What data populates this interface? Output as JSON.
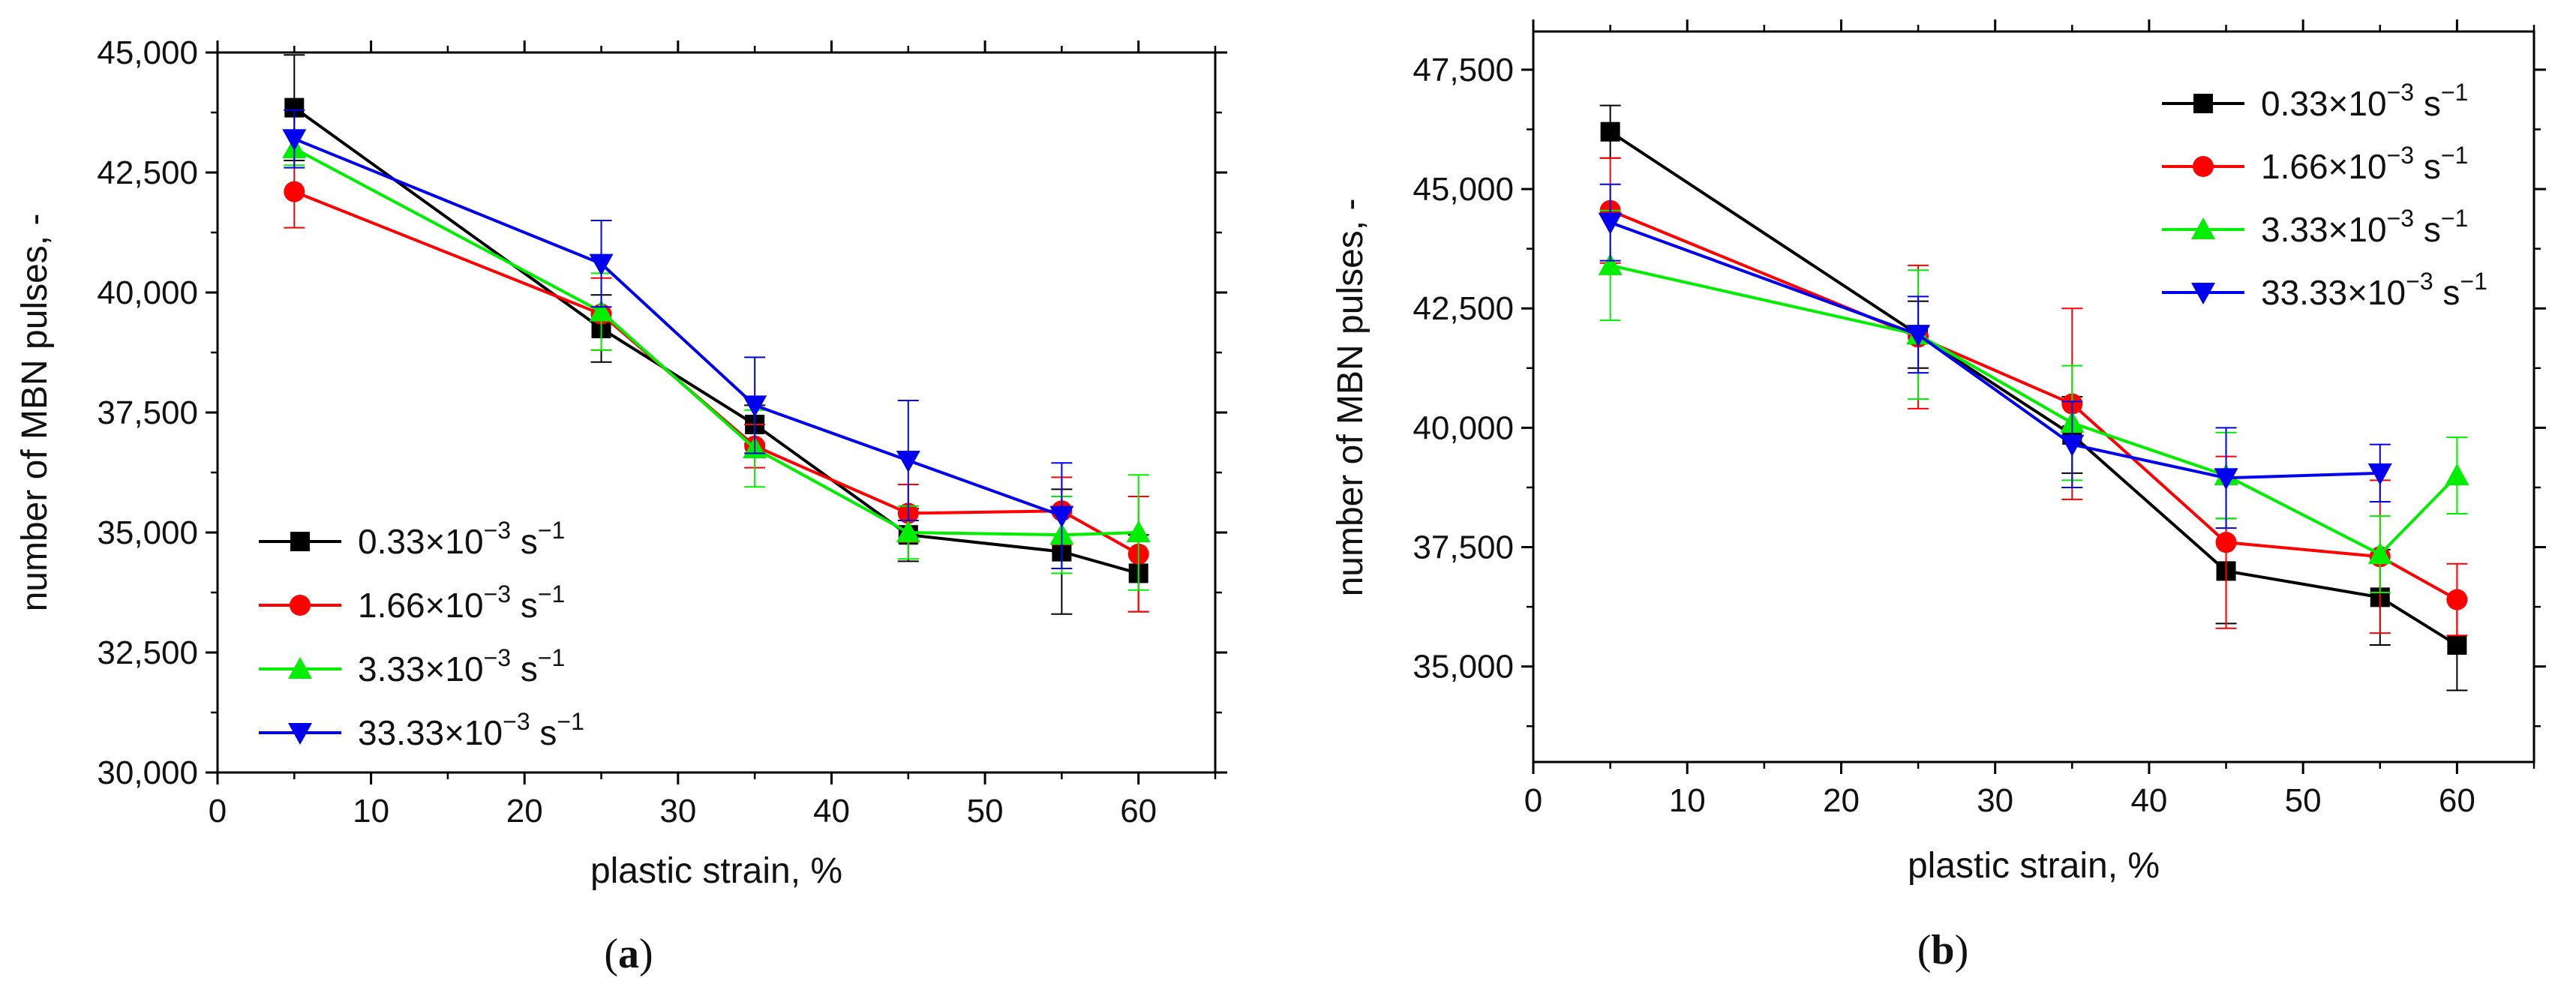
{
  "chart_data": [
    {
      "id": "a",
      "type": "line",
      "panel_label": "(a)",
      "title": "",
      "xlabel": "plastic strain, %",
      "ylabel": "number of MBN pulses, -",
      "xlim": [
        0,
        65
      ],
      "ylim": [
        30000,
        45000
      ],
      "xticks": [
        0,
        10,
        20,
        30,
        40,
        50,
        60
      ],
      "xtick_labels": [
        "0",
        "10",
        "20",
        "30",
        "40",
        "50",
        "60"
      ],
      "yticks": [
        30000,
        32500,
        35000,
        37500,
        40000,
        42500,
        45000
      ],
      "ytick_labels": [
        "30,000",
        "32,500",
        "35,000",
        "37,500",
        "40,000",
        "42,500",
        "45,000"
      ],
      "legend_position": "bottom-left",
      "series": [
        {
          "name": "0.33×10^-3 s^-1",
          "base": "0.33×10",
          "exp": "−3",
          "unit": " s",
          "unit_exp": "−1",
          "color": "#000000",
          "marker": "square",
          "x": [
            5,
            25,
            35,
            45,
            55,
            60
          ],
          "y": [
            43850,
            39250,
            37250,
            34950,
            34600,
            34150
          ],
          "err": [
            1100,
            700,
            400,
            550,
            1300,
            800
          ]
        },
        {
          "name": "1.66×10^-3 s^-1",
          "base": "1.66×10",
          "exp": "−3",
          "unit": " s",
          "unit_exp": "−1",
          "color": "#ff0000",
          "marker": "circle",
          "x": [
            5,
            25,
            35,
            45,
            55,
            60
          ],
          "y": [
            42100,
            39550,
            36800,
            35400,
            35450,
            34550
          ],
          "err": [
            750,
            750,
            450,
            600,
            700,
            1200
          ]
        },
        {
          "name": "3.33×10^-3 s^-1",
          "base": "3.33×10",
          "exp": "−3",
          "unit": " s",
          "unit_exp": "−1",
          "color": "#00ee00",
          "marker": "triangle-up",
          "x": [
            5,
            25,
            35,
            45,
            55,
            60
          ],
          "y": [
            43000,
            39600,
            36750,
            35000,
            34950,
            35000
          ],
          "err": [
            350,
            800,
            800,
            550,
            800,
            1200
          ]
        },
        {
          "name": "33.33×10^-3 s^-1",
          "base": "33.33×10",
          "exp": "−3",
          "unit": " s",
          "unit_exp": "−1",
          "color": "#0000ee",
          "marker": "triangle-down",
          "x": [
            5,
            25,
            35,
            45,
            55
          ],
          "y": [
            43200,
            40600,
            37650,
            36500,
            35350
          ],
          "err": [
            600,
            900,
            1000,
            1250,
            1100
          ]
        }
      ]
    },
    {
      "id": "b",
      "type": "line",
      "panel_label": "(b)",
      "title": "",
      "xlabel": "plastic strain, %",
      "ylabel": "number of MBN pulses, -",
      "xlim": [
        0,
        65
      ],
      "ylim": [
        33000,
        48300
      ],
      "xticks": [
        0,
        10,
        20,
        30,
        40,
        50,
        60
      ],
      "xtick_labels": [
        "0",
        "10",
        "20",
        "30",
        "40",
        "50",
        "60"
      ],
      "yticks": [
        35000,
        37500,
        40000,
        42500,
        45000,
        47500
      ],
      "ytick_labels": [
        "35,000",
        "37,500",
        "40,000",
        "42,500",
        "45,000",
        "47,500"
      ],
      "legend_position": "top-right",
      "series": [
        {
          "name": "0.33×10^-3 s^-1",
          "base": "0.33×10",
          "exp": "−3",
          "unit": " s",
          "unit_exp": "−1",
          "color": "#000000",
          "marker": "square",
          "x": [
            5,
            25,
            35,
            45,
            55,
            60
          ],
          "y": [
            46200,
            41950,
            39850,
            37000,
            36450,
            35450
          ],
          "err": [
            550,
            700,
            800,
            1100,
            1000,
            950
          ]
        },
        {
          "name": "1.66×10^-3 s^-1",
          "base": "1.66×10",
          "exp": "−3",
          "unit": " s",
          "unit_exp": "−1",
          "color": "#ff0000",
          "marker": "circle",
          "x": [
            5,
            25,
            35,
            45,
            55,
            60
          ],
          "y": [
            44550,
            41900,
            40500,
            37600,
            37300,
            36400
          ],
          "err": [
            1100,
            1500,
            2000,
            1800,
            1600,
            750
          ]
        },
        {
          "name": "3.33×10^-3 s^-1",
          "base": "3.33×10",
          "exp": "−3",
          "unit": " s",
          "unit_exp": "−1",
          "color": "#00ee00",
          "marker": "triangle-up",
          "x": [
            5,
            25,
            35,
            45,
            55,
            60
          ],
          "y": [
            43400,
            41950,
            40100,
            39000,
            37350,
            39000
          ],
          "err": [
            1150,
            1350,
            1200,
            900,
            800,
            800
          ]
        },
        {
          "name": "33.33×10^-3 s^-1",
          "base": "33.33×10",
          "exp": "−3",
          "unit": " s",
          "unit_exp": "−1",
          "color": "#0000ee",
          "marker": "triangle-down",
          "x": [
            5,
            25,
            35,
            45,
            55
          ],
          "y": [
            44300,
            41950,
            39650,
            38950,
            39050
          ],
          "err": [
            800,
            800,
            900,
            1050,
            600
          ]
        }
      ]
    }
  ]
}
